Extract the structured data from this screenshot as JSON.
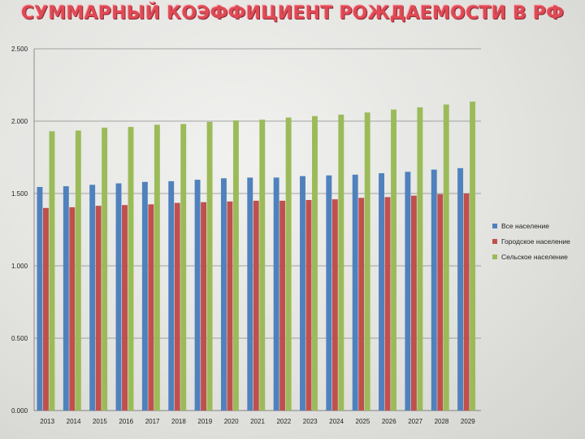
{
  "chart_data": {
    "type": "bar",
    "title": "СУММАРНЫЙ КОЭФФИЦИЕНТ РОЖДАЕМОСТИ В РФ",
    "categories": [
      "2013",
      "2014",
      "2015",
      "2016",
      "2017",
      "2018",
      "2019",
      "2020",
      "2021",
      "2022",
      "2023",
      "2024",
      "2025",
      "2026",
      "2027",
      "2028",
      "2029"
    ],
    "series": [
      {
        "name": "Все население",
        "color": "#4f81bd",
        "values": [
          1.545,
          1.55,
          1.56,
          1.57,
          1.58,
          1.585,
          1.595,
          1.605,
          1.61,
          1.61,
          1.62,
          1.625,
          1.63,
          1.64,
          1.65,
          1.665,
          1.675
        ]
      },
      {
        "name": "Городское население",
        "color": "#c0504d",
        "values": [
          1.4,
          1.405,
          1.415,
          1.42,
          1.425,
          1.435,
          1.44,
          1.445,
          1.45,
          1.45,
          1.455,
          1.46,
          1.47,
          1.475,
          1.485,
          1.495,
          1.5
        ]
      },
      {
        "name": "Сельское население",
        "color": "#9bbb59",
        "values": [
          1.93,
          1.935,
          1.955,
          1.96,
          1.975,
          1.98,
          1.995,
          2.005,
          2.01,
          2.025,
          2.035,
          2.045,
          2.06,
          2.08,
          2.095,
          2.115,
          2.135
        ]
      }
    ],
    "yticks": [
      "0.000",
      "0.500",
      "1.000",
      "1.500",
      "2.000",
      "2.500"
    ],
    "ylim": [
      0,
      2.5
    ],
    "grid": true,
    "legend_position": "right"
  }
}
